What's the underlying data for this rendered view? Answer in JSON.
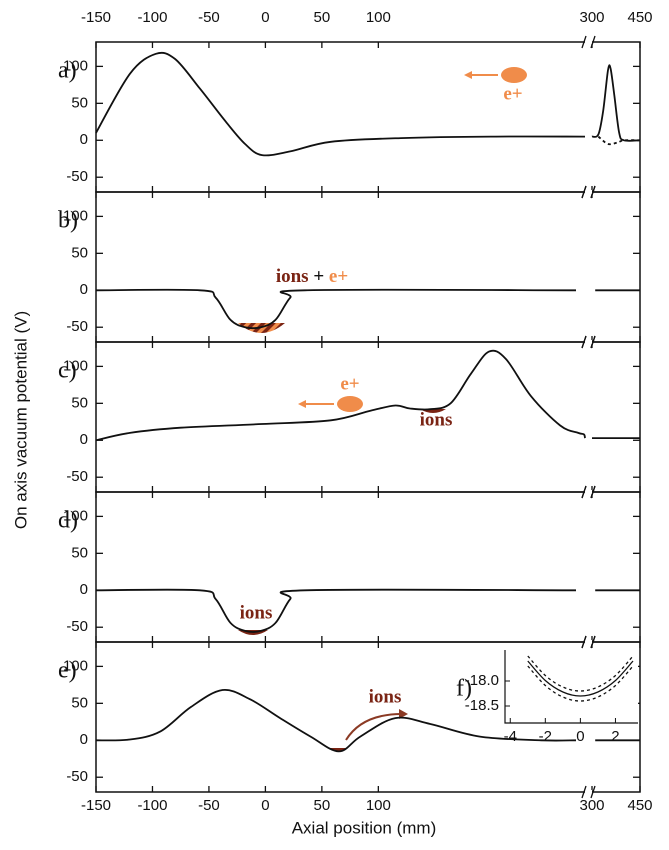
{
  "y_axis_label": "On axis vacuum potential (V)",
  "x_axis": {
    "label": "Axial position (mm)",
    "xlim": [
      -150,
      450
    ],
    "xbreak": [
      283,
      300
    ],
    "xticks": [
      -150,
      -100,
      -50,
      0,
      50,
      100,
      300,
      450
    ]
  },
  "chart_data": [
    {
      "type": "line",
      "label": "a)",
      "ylim": [
        -70,
        133
      ],
      "yticks": [
        -50,
        0,
        50,
        100
      ],
      "annotations": [
        "e+"
      ],
      "series": [
        {
          "color": "#111111",
          "x": [
            -150,
            -120,
            -97,
            -80,
            -58,
            -35,
            -18,
            -3,
            22,
            58,
            120,
            200,
            283,
            null,
            300,
            320,
            335,
            350,
            358,
            370,
            385,
            400,
            450
          ],
          "values": [
            10,
            90,
            117,
            110,
            70,
            25,
            -5,
            -20,
            -15,
            -2,
            3,
            5,
            5,
            null,
            5,
            8,
            40,
            95,
            97,
            60,
            10,
            0,
            0
          ]
        },
        {
          "color": "#111111",
          "dashed": true,
          "x": [
            320,
            350,
            380,
            400,
            450
          ],
          "values": [
            5,
            -5,
            -3,
            0,
            0
          ]
        }
      ]
    },
    {
      "type": "line",
      "label": "b)",
      "ylim": [
        -70,
        133
      ],
      "yticks": [
        -50,
        0,
        50,
        100
      ],
      "annotations": [
        "ions",
        "+",
        "e+"
      ],
      "series": [
        {
          "color": "#111111",
          "x": [
            -150,
            -58,
            -44,
            -31,
            -18,
            -4,
            9,
            22,
            35,
            275,
            null,
            310,
            450
          ],
          "values": [
            0,
            0,
            -10,
            -40,
            -50,
            -50,
            -40,
            -10,
            0,
            0,
            null,
            0,
            0
          ]
        }
      ]
    },
    {
      "type": "line",
      "label": "c)",
      "ylim": [
        -70,
        133
      ],
      "yticks": [
        -50,
        0,
        50,
        100
      ],
      "annotations": [
        "e+",
        "ions"
      ],
      "series": [
        {
          "color": "#111111",
          "x": [
            -150,
            -120,
            -75,
            -3,
            58,
            93,
            115,
            128,
            146,
            164,
            182,
            198,
            213,
            235,
            261,
            277,
            282,
            283,
            null,
            300,
            450
          ],
          "values": [
            0,
            10,
            17,
            22,
            27,
            40,
            47,
            43,
            42,
            50,
            90,
            120,
            110,
            60,
            20,
            10,
            8,
            3,
            null,
            3,
            3
          ]
        }
      ]
    },
    {
      "type": "line",
      "label": "d)",
      "ylim": [
        -70,
        133
      ],
      "yticks": [
        -50,
        0,
        50,
        100
      ],
      "annotations": [
        "ions"
      ],
      "series": [
        {
          "color": "#111111",
          "x": [
            -150,
            -58,
            -44,
            -31,
            -18,
            -4,
            9,
            22,
            35,
            275,
            null,
            310,
            450
          ],
          "values": [
            0,
            0,
            -12,
            -44,
            -55,
            -55,
            -44,
            -12,
            0,
            0,
            null,
            0,
            0
          ]
        }
      ]
    },
    {
      "type": "line",
      "label": "e)",
      "ylim": [
        -70,
        133
      ],
      "yticks": [
        -50,
        0,
        50,
        100
      ],
      "annotations": [
        "ions"
      ],
      "series": [
        {
          "color": "#111111",
          "x": [
            -150,
            -120,
            -93,
            -66,
            -38,
            -13,
            13,
            40,
            65,
            84,
            115,
            146,
            190,
            244,
            275,
            null,
            310,
            450
          ],
          "values": [
            0,
            1,
            12,
            45,
            68,
            55,
            30,
            5,
            -15,
            5,
            30,
            22,
            5,
            0,
            0,
            null,
            0,
            0
          ]
        }
      ]
    },
    {
      "type": "inset",
      "label": "f)",
      "xlim": [
        -4.3,
        3.4
      ],
      "ylim": [
        -18.84,
        -17.38
      ],
      "xticks": [
        -4,
        -2,
        0,
        2
      ],
      "yticks": [
        {
          "value": -18,
          "label": "-18.0"
        },
        {
          "value": -18.5,
          "label": "-18.5"
        }
      ],
      "series": [
        {
          "color": "#111111",
          "x": [
            -3,
            -2,
            -1,
            0,
            1,
            2,
            3
          ],
          "values": [
            -17.6,
            -17.99,
            -18.22,
            -18.3,
            -18.22,
            -17.99,
            -17.6
          ]
        },
        {
          "color": "#111111",
          "dashed": true,
          "x": [
            -3,
            -2,
            -1,
            0,
            1,
            2,
            3
          ],
          "values": [
            -17.5,
            -17.89,
            -18.12,
            -18.2,
            -18.12,
            -17.89,
            -17.5
          ]
        },
        {
          "color": "#111111",
          "dashed": true,
          "x": [
            -3,
            -2,
            -1,
            0,
            1,
            2,
            3
          ],
          "values": [
            -17.7,
            -18.09,
            -18.32,
            -18.4,
            -18.32,
            -18.09,
            -17.7
          ]
        }
      ]
    }
  ]
}
